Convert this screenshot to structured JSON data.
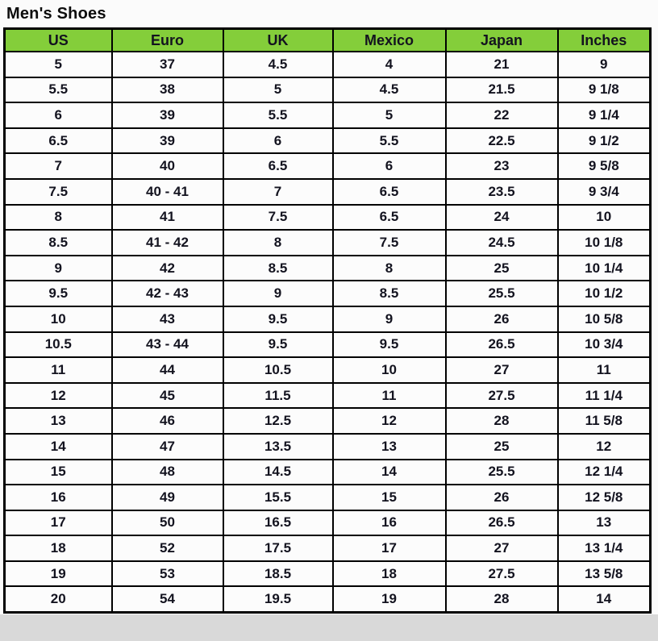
{
  "page": {
    "title": "Men's Shoes"
  },
  "colors": {
    "header_bg": "#84ce3a",
    "border": "#000000",
    "cell_bg": "#fcfcfc",
    "gutter_bg": "#d9d9d9",
    "text": "#13131f"
  },
  "table": {
    "columns": [
      "US",
      "Euro",
      "UK",
      "Mexico",
      "Japan",
      "Inches"
    ],
    "rows": [
      [
        "5",
        "37",
        "4.5",
        "4",
        "21",
        "9"
      ],
      [
        "5.5",
        "38",
        "5",
        "4.5",
        "21.5",
        "9 1/8"
      ],
      [
        "6",
        "39",
        "5.5",
        "5",
        "22",
        "9 1/4"
      ],
      [
        "6.5",
        "39",
        "6",
        "5.5",
        "22.5",
        "9 1/2"
      ],
      [
        "7",
        "40",
        "6.5",
        "6",
        "23",
        "9 5/8"
      ],
      [
        "7.5",
        "40 - 41",
        "7",
        "6.5",
        "23.5",
        "9 3/4"
      ],
      [
        "8",
        "41",
        "7.5",
        "6.5",
        "24",
        "10"
      ],
      [
        "8.5",
        "41 - 42",
        "8",
        "7.5",
        "24.5",
        "10 1/8"
      ],
      [
        "9",
        "42",
        "8.5",
        "8",
        "25",
        "10 1/4"
      ],
      [
        "9.5",
        "42 - 43",
        "9",
        "8.5",
        "25.5",
        "10 1/2"
      ],
      [
        "10",
        "43",
        "9.5",
        "9",
        "26",
        "10 5/8"
      ],
      [
        "10.5",
        "43 - 44",
        "9.5",
        "9.5",
        "26.5",
        "10 3/4"
      ],
      [
        "11",
        "44",
        "10.5",
        "10",
        "27",
        "11"
      ],
      [
        "12",
        "45",
        "11.5",
        "11",
        "27.5",
        "11 1/4"
      ],
      [
        "13",
        "46",
        "12.5",
        "12",
        "28",
        "11 5/8"
      ],
      [
        "14",
        "47",
        "13.5",
        "13",
        "25",
        "12"
      ],
      [
        "15",
        "48",
        "14.5",
        "14",
        "25.5",
        "12 1/4"
      ],
      [
        "16",
        "49",
        "15.5",
        "15",
        "26",
        "12 5/8"
      ],
      [
        "17",
        "50",
        "16.5",
        "16",
        "26.5",
        "13"
      ],
      [
        "18",
        "52",
        "17.5",
        "17",
        "27",
        "13 1/4"
      ],
      [
        "19",
        "53",
        "18.5",
        "18",
        "27.5",
        "13 5/8"
      ],
      [
        "20",
        "54",
        "19.5",
        "19",
        "28",
        "14"
      ]
    ]
  }
}
